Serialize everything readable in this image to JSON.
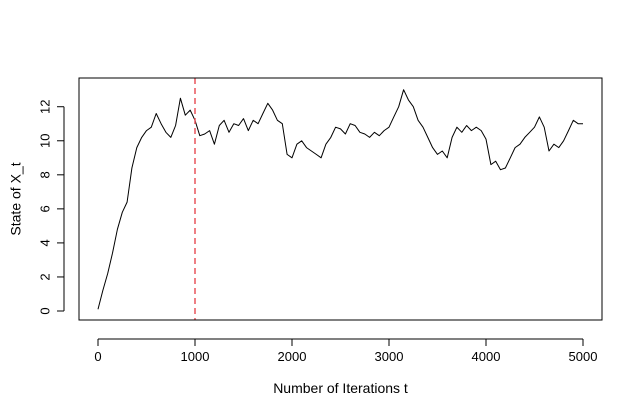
{
  "chart_data": {
    "type": "line",
    "title": "",
    "xlabel": "Number of Iterations t",
    "ylabel": "State of X_t",
    "xlim": [
      0,
      5000
    ],
    "ylim": [
      0,
      12
    ],
    "xticks": [
      0,
      1000,
      2000,
      3000,
      4000,
      5000
    ],
    "xtick_labels": [
      "0",
      "1000",
      "2000",
      "3000",
      "4000",
      "5000"
    ],
    "yticks": [
      0,
      2,
      4,
      6,
      8,
      10,
      12
    ],
    "ytick_labels": [
      "0",
      "2",
      "4",
      "6",
      "8",
      "10",
      "12"
    ],
    "grid": false,
    "reference_lines": [
      {
        "axis": "x",
        "value": 1000,
        "color": "#e8555c",
        "style": "dashed"
      }
    ],
    "series": [
      {
        "color": "#000000",
        "x": [
          0,
          50,
          100,
          150,
          200,
          250,
          300,
          350,
          400,
          450,
          500,
          550,
          600,
          650,
          700,
          750,
          800,
          850,
          900,
          950,
          1000,
          1050,
          1100,
          1150,
          1200,
          1250,
          1300,
          1350,
          1400,
          1450,
          1500,
          1550,
          1600,
          1650,
          1700,
          1750,
          1800,
          1850,
          1900,
          1950,
          2000,
          2050,
          2100,
          2150,
          2200,
          2250,
          2300,
          2350,
          2400,
          2450,
          2500,
          2550,
          2600,
          2650,
          2700,
          2750,
          2800,
          2850,
          2900,
          2950,
          3000,
          3050,
          3100,
          3150,
          3200,
          3250,
          3300,
          3350,
          3400,
          3450,
          3500,
          3550,
          3600,
          3650,
          3700,
          3750,
          3800,
          3850,
          3900,
          3950,
          4000,
          4050,
          4100,
          4150,
          4200,
          4250,
          4300,
          4350,
          4400,
          4450,
          4500,
          4550,
          4600,
          4650,
          4700,
          4750,
          4800,
          4850,
          4900,
          4950,
          5000
        ],
        "y": [
          0.1,
          1.2,
          2.2,
          3.4,
          4.8,
          5.8,
          6.4,
          8.4,
          9.6,
          10.2,
          10.6,
          10.8,
          11.6,
          11.0,
          10.5,
          10.2,
          10.9,
          12.5,
          11.5,
          11.8,
          11.2,
          10.3,
          10.4,
          10.6,
          9.8,
          10.9,
          11.2,
          10.5,
          11.0,
          10.9,
          11.3,
          10.6,
          11.2,
          11.0,
          11.6,
          12.2,
          11.8,
          11.2,
          11.0,
          9.2,
          9.0,
          9.8,
          10.0,
          9.6,
          9.4,
          9.2,
          9.0,
          9.8,
          10.2,
          10.8,
          10.7,
          10.4,
          11.0,
          10.9,
          10.5,
          10.4,
          10.2,
          10.5,
          10.3,
          10.6,
          10.8,
          11.4,
          12.0,
          13.0,
          12.4,
          12.0,
          11.2,
          10.8,
          10.2,
          9.6,
          9.2,
          9.4,
          9.0,
          10.2,
          10.8,
          10.5,
          10.9,
          10.6,
          10.8,
          10.6,
          10.1,
          8.6,
          8.8,
          8.3,
          8.4,
          9.0,
          9.6,
          9.8,
          10.2,
          10.5,
          10.8,
          11.4,
          10.8,
          9.4,
          9.8,
          9.6,
          10.0,
          10.6,
          11.2,
          11.0,
          11.0
        ]
      }
    ]
  }
}
